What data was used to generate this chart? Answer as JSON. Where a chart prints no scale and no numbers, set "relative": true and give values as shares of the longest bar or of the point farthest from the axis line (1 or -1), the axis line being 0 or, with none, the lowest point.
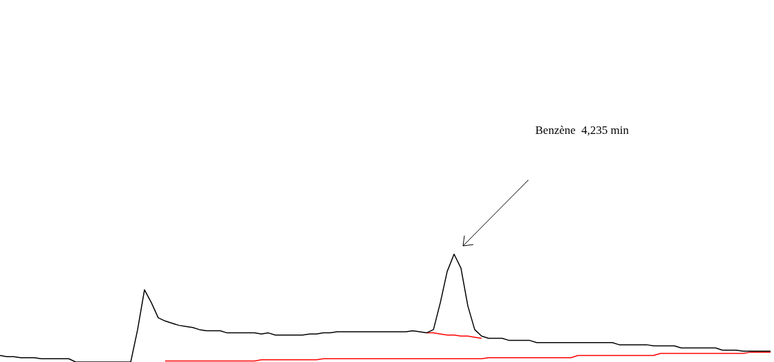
{
  "chart_data": {
    "type": "line",
    "relative": true,
    "annotations": [
      "Benzène  4,235 min"
    ],
    "categories": [
      null,
      null,
      null,
      null,
      null,
      null,
      null,
      null,
      null,
      null,
      null,
      null,
      null,
      null,
      null,
      null,
      null,
      null,
      null,
      null,
      null,
      null,
      null,
      null,
      null,
      null,
      null,
      null,
      null,
      null,
      null,
      null,
      null,
      null,
      null,
      null,
      null,
      null,
      null,
      null,
      null,
      null,
      null,
      null,
      null,
      null,
      null,
      null,
      null,
      null,
      null,
      null,
      null,
      null,
      null,
      null,
      null,
      null,
      null,
      null,
      null,
      null,
      null,
      null,
      null,
      null,
      null,
      null,
      null,
      null,
      null,
      null,
      null,
      null,
      null,
      null,
      null,
      null,
      null,
      null,
      null,
      null,
      null,
      null,
      null,
      null,
      null,
      null,
      null,
      null,
      null,
      null,
      null,
      null,
      null,
      null,
      null,
      null,
      null,
      null,
      null,
      null,
      null,
      null,
      null,
      null,
      null,
      null,
      null,
      null,
      null,
      null,
      null
    ],
    "series": [
      {
        "color": "#000000",
        "values": [
          0.06,
          0.05,
          0.05,
          0.04,
          0.04,
          0.04,
          0.03,
          0.03,
          0.03,
          0.03,
          0.03,
          0,
          0,
          0,
          0,
          0,
          0,
          0,
          0,
          0,
          0.3,
          0.67,
          0.55,
          0.41,
          0.38,
          0.36,
          0.34,
          0.33,
          0.32,
          0.3,
          0.29,
          0.29,
          0.29,
          0.27,
          0.27,
          0.27,
          0.27,
          0.27,
          0.26,
          0.27,
          0.25,
          0.25,
          0.25,
          0.25,
          0.25,
          0.26,
          0.26,
          0.27,
          0.27,
          0.28,
          0.28,
          0.28,
          0.28,
          0.28,
          0.28,
          0.28,
          0.28,
          0.28,
          0.28,
          0.28,
          0.29,
          0.28,
          0.27,
          0.3,
          0.55,
          0.84,
          1,
          0.87,
          0.52,
          0.3,
          0.24,
          0.22,
          0.22,
          0.22,
          0.2,
          0.2,
          0.2,
          0.2,
          0.18,
          0.18,
          0.18,
          0.18,
          0.18,
          0.18,
          0.18,
          0.18,
          0.18,
          0.18,
          0.18,
          0.18,
          0.16,
          0.16,
          0.16,
          0.16,
          0.16,
          0.15,
          0.15,
          0.15,
          0.15,
          0.13,
          0.13,
          0.13,
          0.13,
          0.13,
          0.13,
          0.11,
          0.11,
          0.11,
          0.1,
          0.1,
          0.1,
          0.1,
          0.1
        ]
      },
      {
        "color": "#ff0000",
        "values": [
          null,
          null,
          null,
          null,
          null,
          null,
          null,
          null,
          null,
          null,
          null,
          null,
          null,
          null,
          null,
          null,
          null,
          null,
          null,
          null,
          null,
          null,
          null,
          null,
          null,
          null,
          null,
          null,
          null,
          null,
          null,
          null,
          null,
          null,
          null,
          null,
          null,
          null,
          null,
          null,
          null,
          null,
          null,
          null,
          null,
          null,
          null,
          null,
          null,
          null,
          null,
          null,
          null,
          null,
          null,
          null,
          null,
          null,
          null,
          null,
          null,
          null,
          0.27,
          0.27,
          0.26,
          0.25,
          0.25,
          0.24,
          0.24,
          0.23,
          0.22,
          null,
          null,
          null,
          null,
          null,
          null,
          null,
          null,
          null,
          null,
          null,
          null,
          null,
          null,
          null,
          null,
          null,
          null,
          null,
          null,
          null,
          null,
          null,
          null,
          null,
          null,
          null,
          null,
          null,
          null,
          null,
          null,
          null,
          null,
          null,
          null,
          null,
          null,
          null,
          null,
          null,
          null
        ]
      },
      {
        "color": "#ff0000",
        "values": [
          null,
          null,
          null,
          null,
          null,
          null,
          null,
          null,
          null,
          null,
          null,
          null,
          null,
          null,
          null,
          null,
          null,
          null,
          null,
          null,
          null,
          null,
          null,
          null,
          0.01,
          0.01,
          0.01,
          0.01,
          0.01,
          0.01,
          0.01,
          0.01,
          0.01,
          0.01,
          0.01,
          0.01,
          0.01,
          0.01,
          0.02,
          0.02,
          0.02,
          0.02,
          0.02,
          0.02,
          0.02,
          0.02,
          0.02,
          0.03,
          0.03,
          0.03,
          0.03,
          0.03,
          0.03,
          0.03,
          0.03,
          0.03,
          0.03,
          0.03,
          0.03,
          0.03,
          0.03,
          0.03,
          0.03,
          0.03,
          0.03,
          0.03,
          0.03,
          0.03,
          0.03,
          0.03,
          0.03,
          0.04,
          0.04,
          0.04,
          0.04,
          0.04,
          0.04,
          0.04,
          0.04,
          0.04,
          0.04,
          0.04,
          0.04,
          0.04,
          0.06,
          0.06,
          0.06,
          0.06,
          0.06,
          0.06,
          0.06,
          0.06,
          0.06,
          0.06,
          0.06,
          0.06,
          0.08,
          0.08,
          0.08,
          0.08,
          0.08,
          0.08,
          0.08,
          0.08,
          0.08,
          0.08,
          0.08,
          0.08,
          0.08,
          0.09,
          0.09,
          0.09,
          0.09
        ]
      }
    ]
  }
}
